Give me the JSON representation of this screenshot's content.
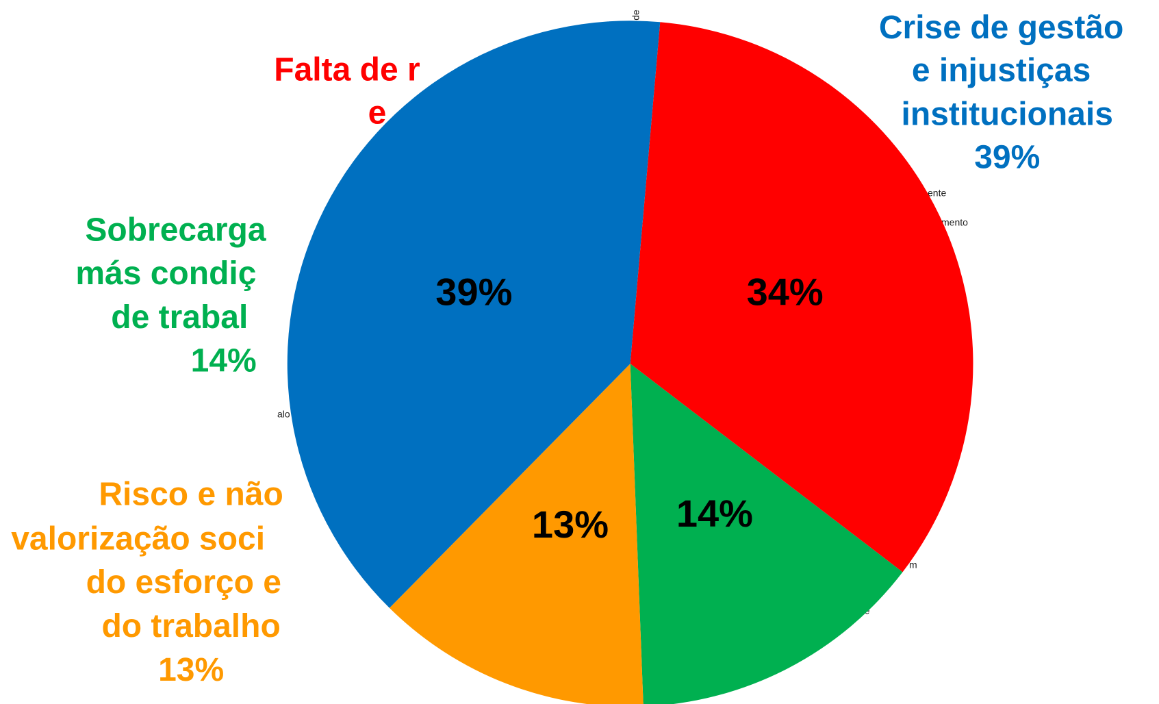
{
  "chart_data": {
    "type": "pie",
    "categories": [
      [
        "Falta de r",
        "e"
      ],
      [
        "Sobrecarga",
        "más condiç",
        "de trabal"
      ],
      [
        "Risco e não",
        "valorização soci",
        "do esforço e",
        "do trabalho"
      ],
      [
        "Crise de gestão",
        "e injustiças",
        "institucionais"
      ]
    ],
    "values": [
      34,
      14,
      13,
      39
    ],
    "value_labels": [
      "34%",
      "14%",
      "13%",
      "39%"
    ],
    "outer_value_labels": [
      null,
      "14%",
      "13%",
      "39%"
    ],
    "colors": [
      "#ff0000",
      "#00b050",
      "#ff9900",
      "#0070c0"
    ],
    "background_fragments": [
      "de",
      "ente",
      "mento",
      "alo",
      "m",
      "de"
    ]
  }
}
